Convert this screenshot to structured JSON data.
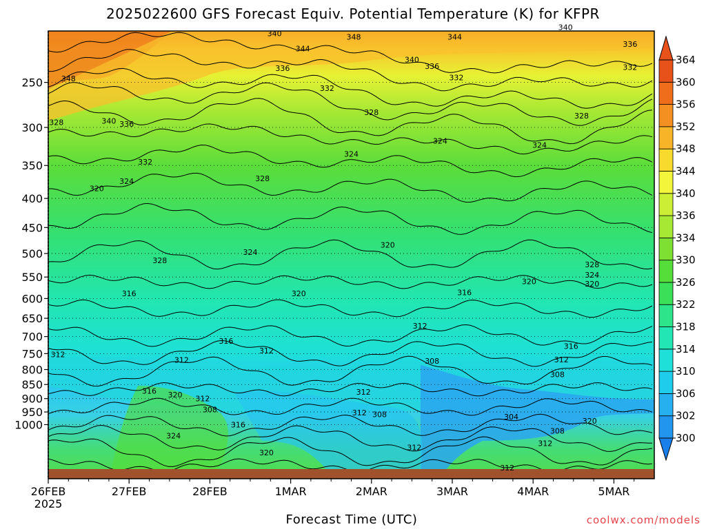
{
  "header": {
    "title": "2025022600 GFS Forecast Equiv. Potential Temperature (K) for KFPR"
  },
  "footer": {
    "credit": "coolwx.com/models"
  },
  "chart_data": {
    "type": "heatmap",
    "title": "2025022600 GFS Forecast Equiv. Potential Temperature (K) for KFPR",
    "xlabel": "Forecast Time (UTC)",
    "ylabel": "",
    "x_ticks": [
      "26FEB",
      "27FEB",
      "28FEB",
      "1MAR",
      "2MAR",
      "3MAR",
      "4MAR",
      "5MAR"
    ],
    "x_tick_sub": "2025",
    "y_ticks": [
      250,
      300,
      350,
      400,
      450,
      500,
      550,
      600,
      650,
      700,
      750,
      800,
      850,
      900,
      950,
      1000
    ],
    "y_scale": "log-pressure",
    "y_axis_inverted": true,
    "grid": true,
    "grid_style": "dotted",
    "colorbar": {
      "levels": [
        300,
        302,
        306,
        310,
        314,
        318,
        322,
        326,
        330,
        334,
        336,
        340,
        344,
        348,
        352,
        356,
        360,
        364
      ],
      "placement": "right",
      "extend": "both",
      "colors": [
        "#1a7fe8",
        "#2296ee",
        "#27b0f0",
        "#20ccec",
        "#1ee0d8",
        "#22e6b4",
        "#2ee48a",
        "#3cdf58",
        "#55dd3a",
        "#7ee032",
        "#a6e834",
        "#ccef36",
        "#f2f53a",
        "#f8da2e",
        "#f8b428",
        "#f49022",
        "#ee6e1c",
        "#e6521a"
      ]
    },
    "contour_labels": [
      {
        "value": "340",
        "t": 2.8,
        "p": 205
      },
      {
        "value": "344",
        "t": 3.15,
        "p": 218
      },
      {
        "value": "348",
        "t": 3.78,
        "p": 208
      },
      {
        "value": "344",
        "t": 5.03,
        "p": 208
      },
      {
        "value": "340",
        "t": 6.4,
        "p": 200
      },
      {
        "value": "340",
        "t": 4.5,
        "p": 228
      },
      {
        "value": "336",
        "t": 4.75,
        "p": 234
      },
      {
        "value": "336",
        "t": 7.2,
        "p": 214
      },
      {
        "value": "332",
        "t": 7.2,
        "p": 235
      },
      {
        "value": "336",
        "t": 2.9,
        "p": 236
      },
      {
        "value": "332",
        "t": 3.45,
        "p": 256
      },
      {
        "value": "332",
        "t": 5.05,
        "p": 245
      },
      {
        "value": "348",
        "t": 0.25,
        "p": 246
      },
      {
        "value": "328",
        "t": 4.0,
        "p": 282
      },
      {
        "value": "328",
        "t": 6.6,
        "p": 286
      },
      {
        "value": "340",
        "t": 0.75,
        "p": 292
      },
      {
        "value": "336",
        "t": 0.97,
        "p": 296
      },
      {
        "value": "328",
        "t": 0.1,
        "p": 294
      },
      {
        "value": "324",
        "t": 4.85,
        "p": 317
      },
      {
        "value": "324",
        "t": 6.08,
        "p": 322
      },
      {
        "value": "324",
        "t": 3.75,
        "p": 334
      },
      {
        "value": "332",
        "t": 1.2,
        "p": 345
      },
      {
        "value": "328",
        "t": 2.65,
        "p": 369
      },
      {
        "value": "324",
        "t": 0.97,
        "p": 373
      },
      {
        "value": "320",
        "t": 0.6,
        "p": 384
      },
      {
        "value": "320",
        "t": 4.2,
        "p": 483
      },
      {
        "value": "324",
        "t": 2.5,
        "p": 497
      },
      {
        "value": "328",
        "t": 1.38,
        "p": 514
      },
      {
        "value": "328",
        "t": 6.73,
        "p": 523
      },
      {
        "value": "324",
        "t": 6.73,
        "p": 545
      },
      {
        "value": "320",
        "t": 6.73,
        "p": 565
      },
      {
        "value": "320",
        "t": 5.95,
        "p": 560
      },
      {
        "value": "316",
        "t": 1.0,
        "p": 588
      },
      {
        "value": "320",
        "t": 3.1,
        "p": 588
      },
      {
        "value": "316",
        "t": 5.15,
        "p": 585
      },
      {
        "value": "312",
        "t": 4.6,
        "p": 670
      },
      {
        "value": "316",
        "t": 2.2,
        "p": 713
      },
      {
        "value": "312",
        "t": 2.7,
        "p": 741
      },
      {
        "value": "316",
        "t": 6.47,
        "p": 728
      },
      {
        "value": "312",
        "t": 0.12,
        "p": 752
      },
      {
        "value": "312",
        "t": 1.65,
        "p": 769
      },
      {
        "value": "312",
        "t": 6.35,
        "p": 768
      },
      {
        "value": "308",
        "t": 4.75,
        "p": 773
      },
      {
        "value": "312",
        "t": 3.9,
        "p": 876
      },
      {
        "value": "308",
        "t": 6.3,
        "p": 816
      },
      {
        "value": "316",
        "t": 1.25,
        "p": 872
      },
      {
        "value": "320",
        "t": 1.57,
        "p": 886
      },
      {
        "value": "312",
        "t": 1.91,
        "p": 899
      },
      {
        "value": "308",
        "t": 2.0,
        "p": 940
      },
      {
        "value": "312",
        "t": 3.85,
        "p": 953
      },
      {
        "value": "308",
        "t": 4.1,
        "p": 959
      },
      {
        "value": "304",
        "t": 5.73,
        "p": 968
      },
      {
        "value": "320",
        "t": 6.7,
        "p": 985
      },
      {
        "value": "316",
        "t": 2.35,
        "p": 1000
      },
      {
        "value": "324",
        "t": 1.55,
        "p": 1046
      },
      {
        "value": "308",
        "t": 6.3,
        "p": 1025
      },
      {
        "value": "312",
        "t": 6.15,
        "p": 1079
      },
      {
        "value": "312",
        "t": 4.53,
        "p": 1097
      },
      {
        "value": "320",
        "t": 2.7,
        "p": 1120
      },
      {
        "value": "312",
        "t": 5.68,
        "p": 1190
      }
    ]
  }
}
